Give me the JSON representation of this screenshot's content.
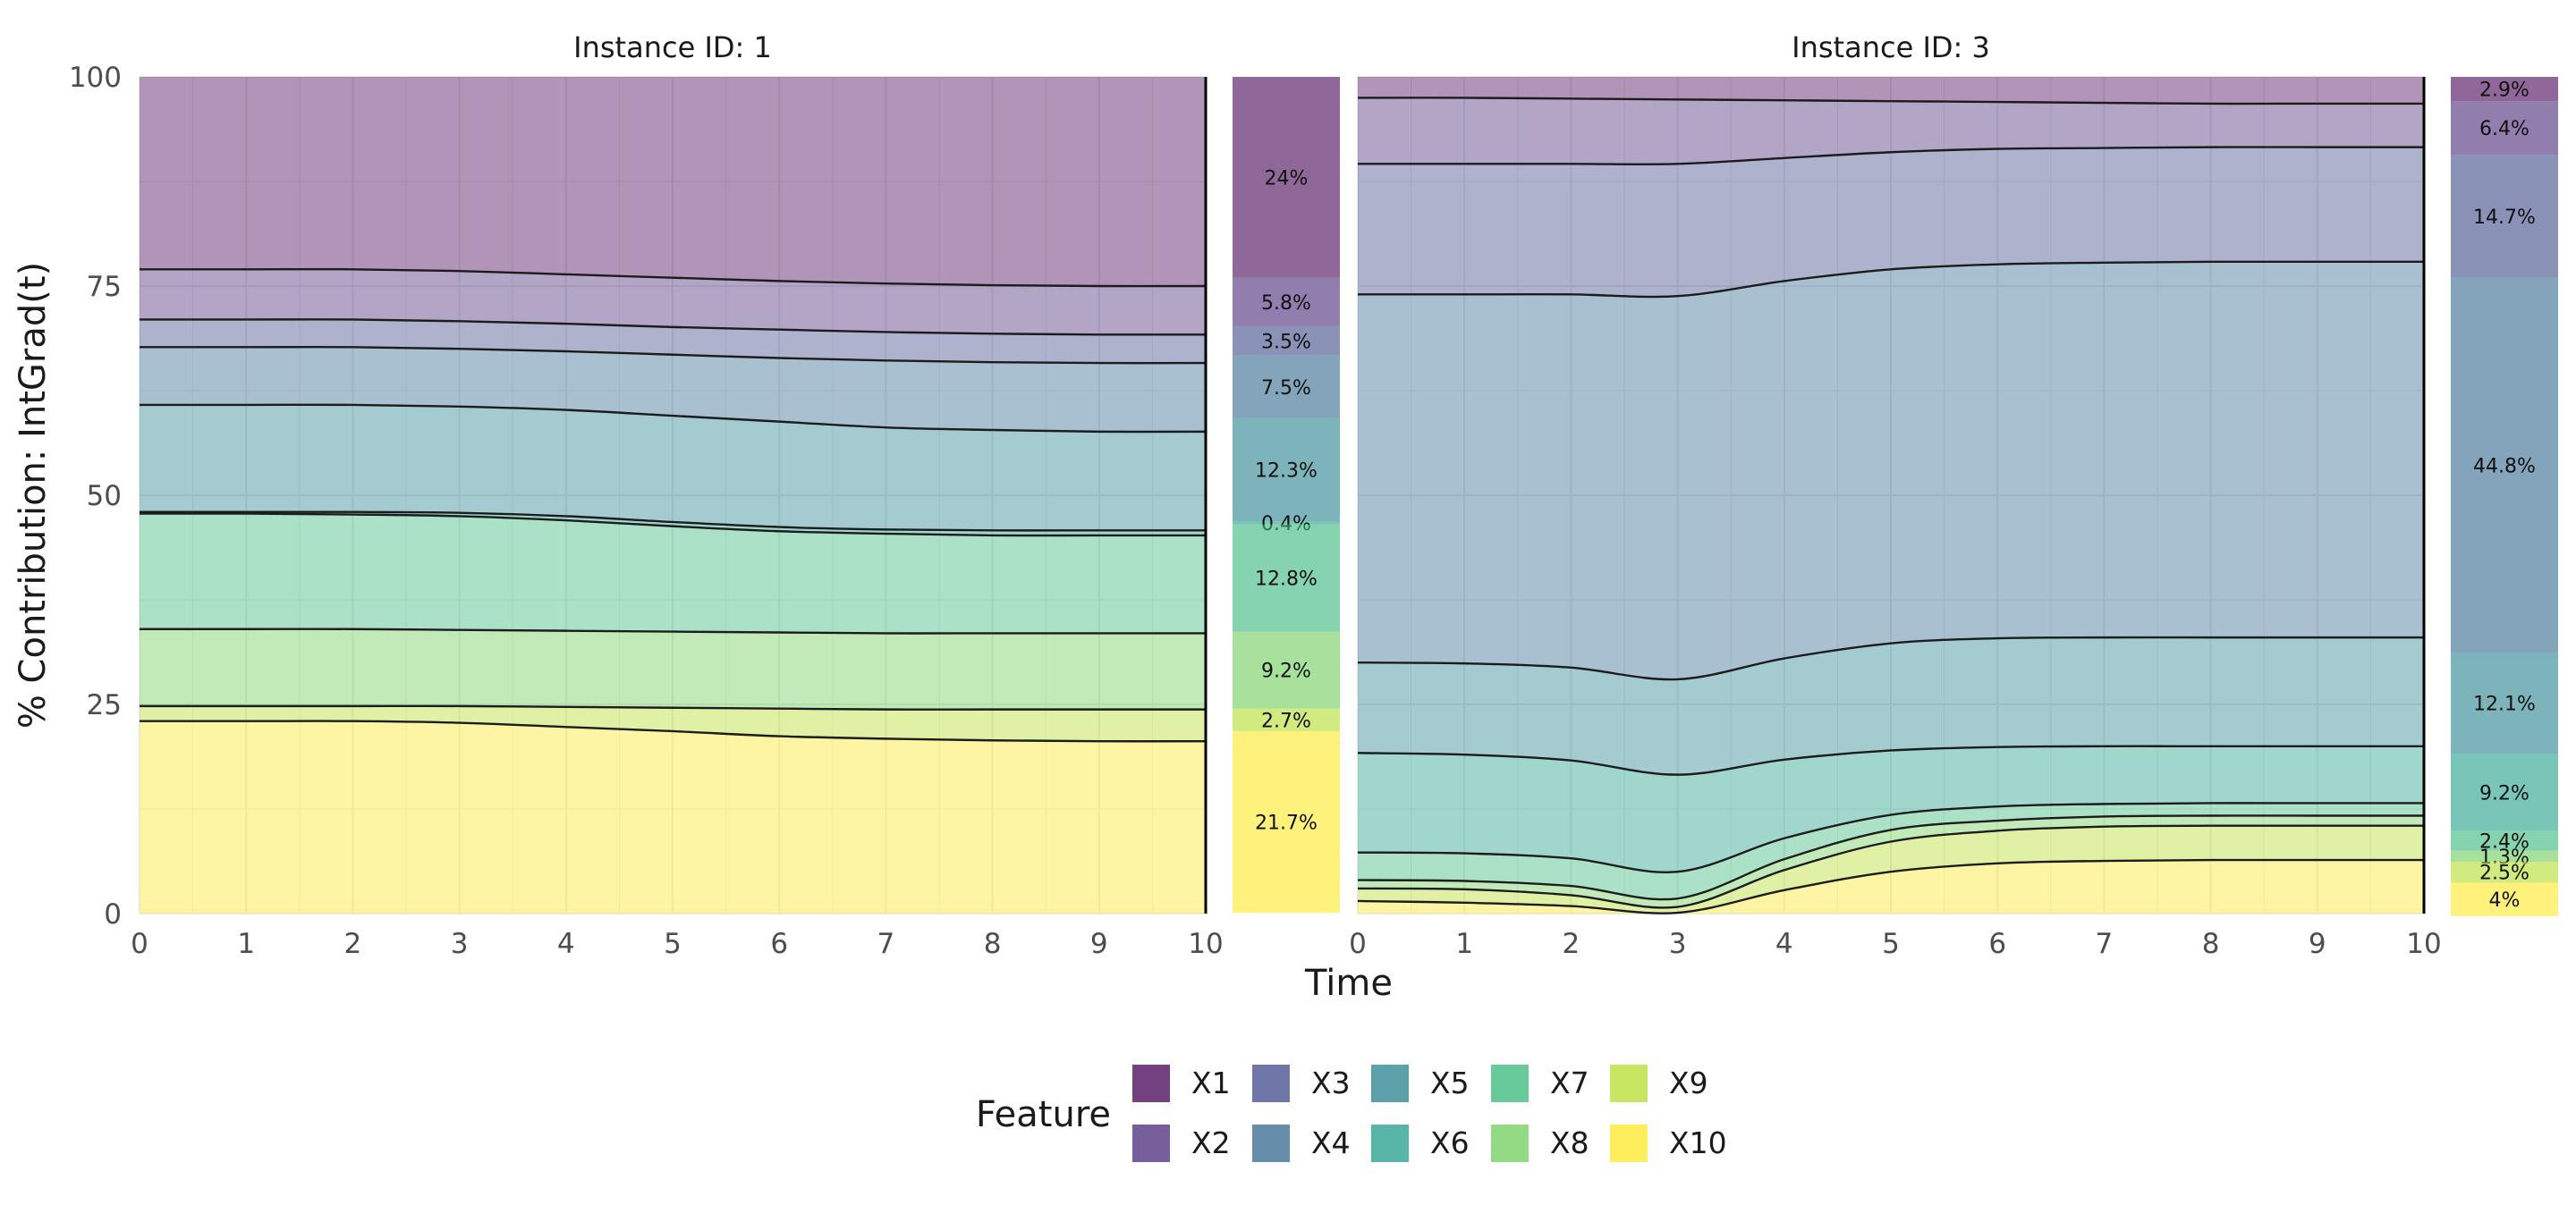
{
  "chart_data": {
    "type": "area",
    "ylabel": "% Contribution: IntGrad(t)",
    "xlabel": "Time",
    "ylim": [
      0,
      100
    ],
    "xlim": [
      0,
      10
    ],
    "yticks": [
      0,
      25,
      50,
      75,
      100
    ],
    "xticks": [
      0,
      1,
      2,
      3,
      4,
      5,
      6,
      7,
      8,
      9,
      10
    ],
    "grid": true,
    "legend": {
      "title": "Feature",
      "position": "bottom",
      "items": [
        "X1",
        "X2",
        "X3",
        "X4",
        "X5",
        "X6",
        "X7",
        "X8",
        "X9",
        "X10"
      ]
    },
    "colors": {
      "X1": "#440154",
      "X2": "#482878",
      "X3": "#3E4A89",
      "X4": "#31688E",
      "X5": "#26828E",
      "X6": "#1F9E89",
      "X7": "#35B779",
      "X8": "#6DCD59",
      "X9": "#B4DE2C",
      "X10": "#FDE725"
    },
    "panels": [
      {
        "title": "Instance ID: 1",
        "x": [
          0,
          1,
          2,
          3,
          4,
          5,
          6,
          7,
          8,
          9,
          10
        ],
        "boundaries_top_down": [
          [
            77.0,
            77.0,
            77.0,
            76.8,
            76.4,
            76.0,
            75.6,
            75.3,
            75.1,
            75.0,
            75.0
          ],
          [
            71.0,
            71.0,
            71.0,
            70.8,
            70.5,
            70.1,
            69.8,
            69.5,
            69.3,
            69.2,
            69.2
          ],
          [
            67.7,
            67.7,
            67.7,
            67.5,
            67.2,
            66.8,
            66.4,
            66.1,
            65.9,
            65.8,
            65.8
          ],
          [
            60.8,
            60.8,
            60.8,
            60.6,
            60.2,
            59.5,
            58.8,
            58.1,
            57.8,
            57.6,
            57.6
          ],
          [
            48.0,
            48.0,
            48.0,
            47.9,
            47.5,
            46.8,
            46.2,
            45.9,
            45.8,
            45.8,
            45.8
          ],
          [
            47.8,
            47.8,
            47.7,
            47.5,
            47.0,
            46.3,
            45.7,
            45.4,
            45.2,
            45.2,
            45.2
          ],
          [
            34.0,
            34.0,
            34.0,
            33.9,
            33.8,
            33.7,
            33.6,
            33.5,
            33.5,
            33.5,
            33.5
          ],
          [
            24.8,
            24.8,
            24.8,
            24.8,
            24.7,
            24.6,
            24.5,
            24.4,
            24.4,
            24.4,
            24.4
          ],
          [
            23.0,
            23.0,
            23.0,
            22.8,
            22.3,
            21.8,
            21.2,
            20.9,
            20.7,
            20.6,
            20.6
          ]
        ],
        "bar_percentages": {
          "X1": "24%",
          "X2": "5.8%",
          "X3": "3.5%",
          "X4": "7.5%",
          "X5": "12.3%",
          "X6": "0.4%",
          "X7": "12.8%",
          "X8": "9.2%",
          "X9": "2.7%",
          "X10": "21.7%"
        },
        "bar_values": [
          24,
          5.8,
          3.5,
          7.5,
          12.3,
          0.4,
          12.8,
          9.2,
          2.7,
          21.7
        ]
      },
      {
        "title": "Instance ID: 3",
        "x": [
          0,
          1,
          2,
          3,
          4,
          5,
          6,
          7,
          8,
          9,
          10
        ],
        "boundaries_top_down": [
          [
            97.5,
            97.5,
            97.4,
            97.3,
            97.2,
            97.1,
            97.0,
            96.9,
            96.8,
            96.8,
            96.8
          ],
          [
            89.6,
            89.6,
            89.6,
            89.6,
            90.3,
            91.0,
            91.4,
            91.5,
            91.6,
            91.6,
            91.6
          ],
          [
            74.0,
            74.0,
            74.0,
            73.8,
            75.6,
            77.0,
            77.6,
            77.8,
            77.9,
            77.9,
            77.9
          ],
          [
            30.0,
            29.9,
            29.4,
            28.0,
            30.5,
            32.3,
            32.9,
            33.0,
            33.0,
            33.0,
            33.0
          ],
          [
            19.2,
            19.0,
            18.3,
            16.6,
            18.4,
            19.5,
            19.9,
            20.0,
            20.0,
            20.0,
            20.0
          ],
          [
            7.3,
            7.2,
            6.6,
            5.0,
            9.0,
            11.8,
            12.8,
            13.1,
            13.2,
            13.2,
            13.2
          ],
          [
            4.0,
            3.9,
            3.3,
            1.8,
            6.5,
            10.0,
            11.1,
            11.6,
            11.7,
            11.7,
            11.7
          ],
          [
            3.0,
            2.9,
            2.2,
            0.8,
            5.2,
            8.6,
            9.9,
            10.4,
            10.5,
            10.5,
            10.5
          ],
          [
            1.5,
            1.3,
            0.9,
            0.1,
            2.8,
            5.0,
            6.0,
            6.3,
            6.4,
            6.4,
            6.4
          ]
        ],
        "bar_percentages": {
          "X1": "2.9%",
          "X2": "6.4%",
          "X3": "14.7%",
          "X4": "44.8%",
          "X5": "12.1%",
          "X6": "9.2%",
          "X7": "2.4%",
          "X8": "1.3%",
          "X9": "2.5%",
          "X10": "4%"
        },
        "bar_values": [
          2.9,
          6.4,
          14.7,
          44.8,
          12.1,
          9.2,
          2.4,
          1.3,
          2.5,
          4
        ]
      }
    ]
  }
}
